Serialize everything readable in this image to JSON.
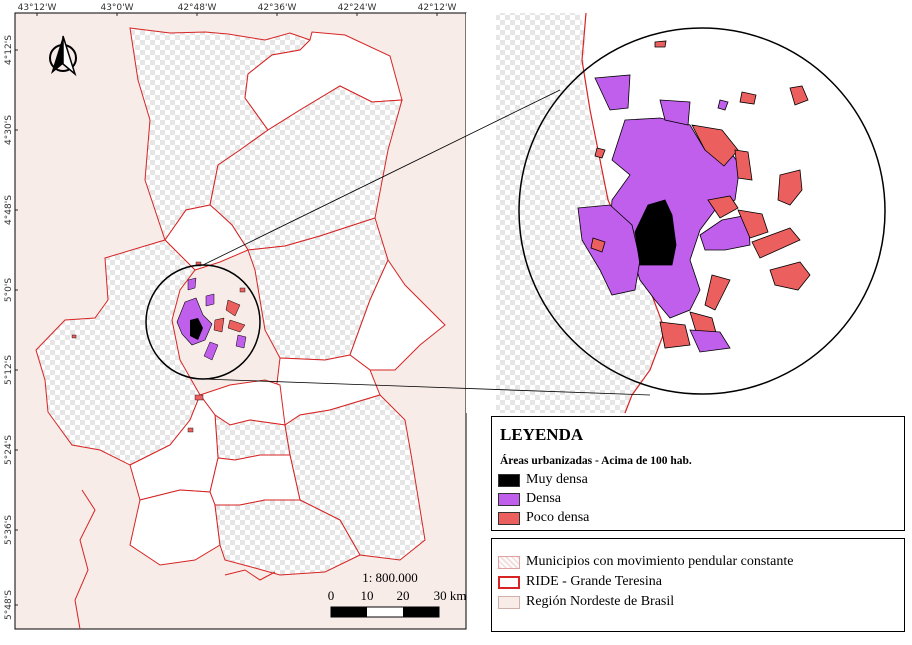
{
  "graticule": {
    "top_labels": [
      "43°12'W",
      "43°0'W",
      "42°48'W",
      "42°36'W",
      "42°24'W",
      "42°12'W"
    ],
    "left_labels": [
      "4°12'S",
      "4°30'S",
      "4°48'S",
      "5°0'S",
      "5°12'S",
      "5°24'S",
      "5°36'S",
      "5°48'S"
    ]
  },
  "scale": {
    "ratio": "1: 800.000",
    "ticks": [
      "0",
      "10",
      "20",
      "30 km"
    ]
  },
  "legend": {
    "title": "LEYENDA",
    "subtitle": "Áreas urbanizadas - Acima de 100 hab.",
    "classes": [
      {
        "label": "Muy densa",
        "color": "#000000"
      },
      {
        "label": "Densa",
        "color": "#bf5fec"
      },
      {
        "label": "Poco densa",
        "color": "#ec5f5f"
      }
    ]
  },
  "legend2": {
    "items": [
      {
        "label": "Municipios con movimiento pendular constante",
        "swatch": "hatch"
      },
      {
        "label": "RIDE - Grande Teresina",
        "swatch": "red-outline"
      },
      {
        "label": "Región Nordeste de Brasil",
        "swatch": "pink"
      }
    ]
  },
  "colors": {
    "region_fill": "#f8ece8",
    "ride_border": "#d62424",
    "hatch": "#e0e0e0"
  },
  "icons": {
    "north_arrow": "north-arrow-icon"
  }
}
